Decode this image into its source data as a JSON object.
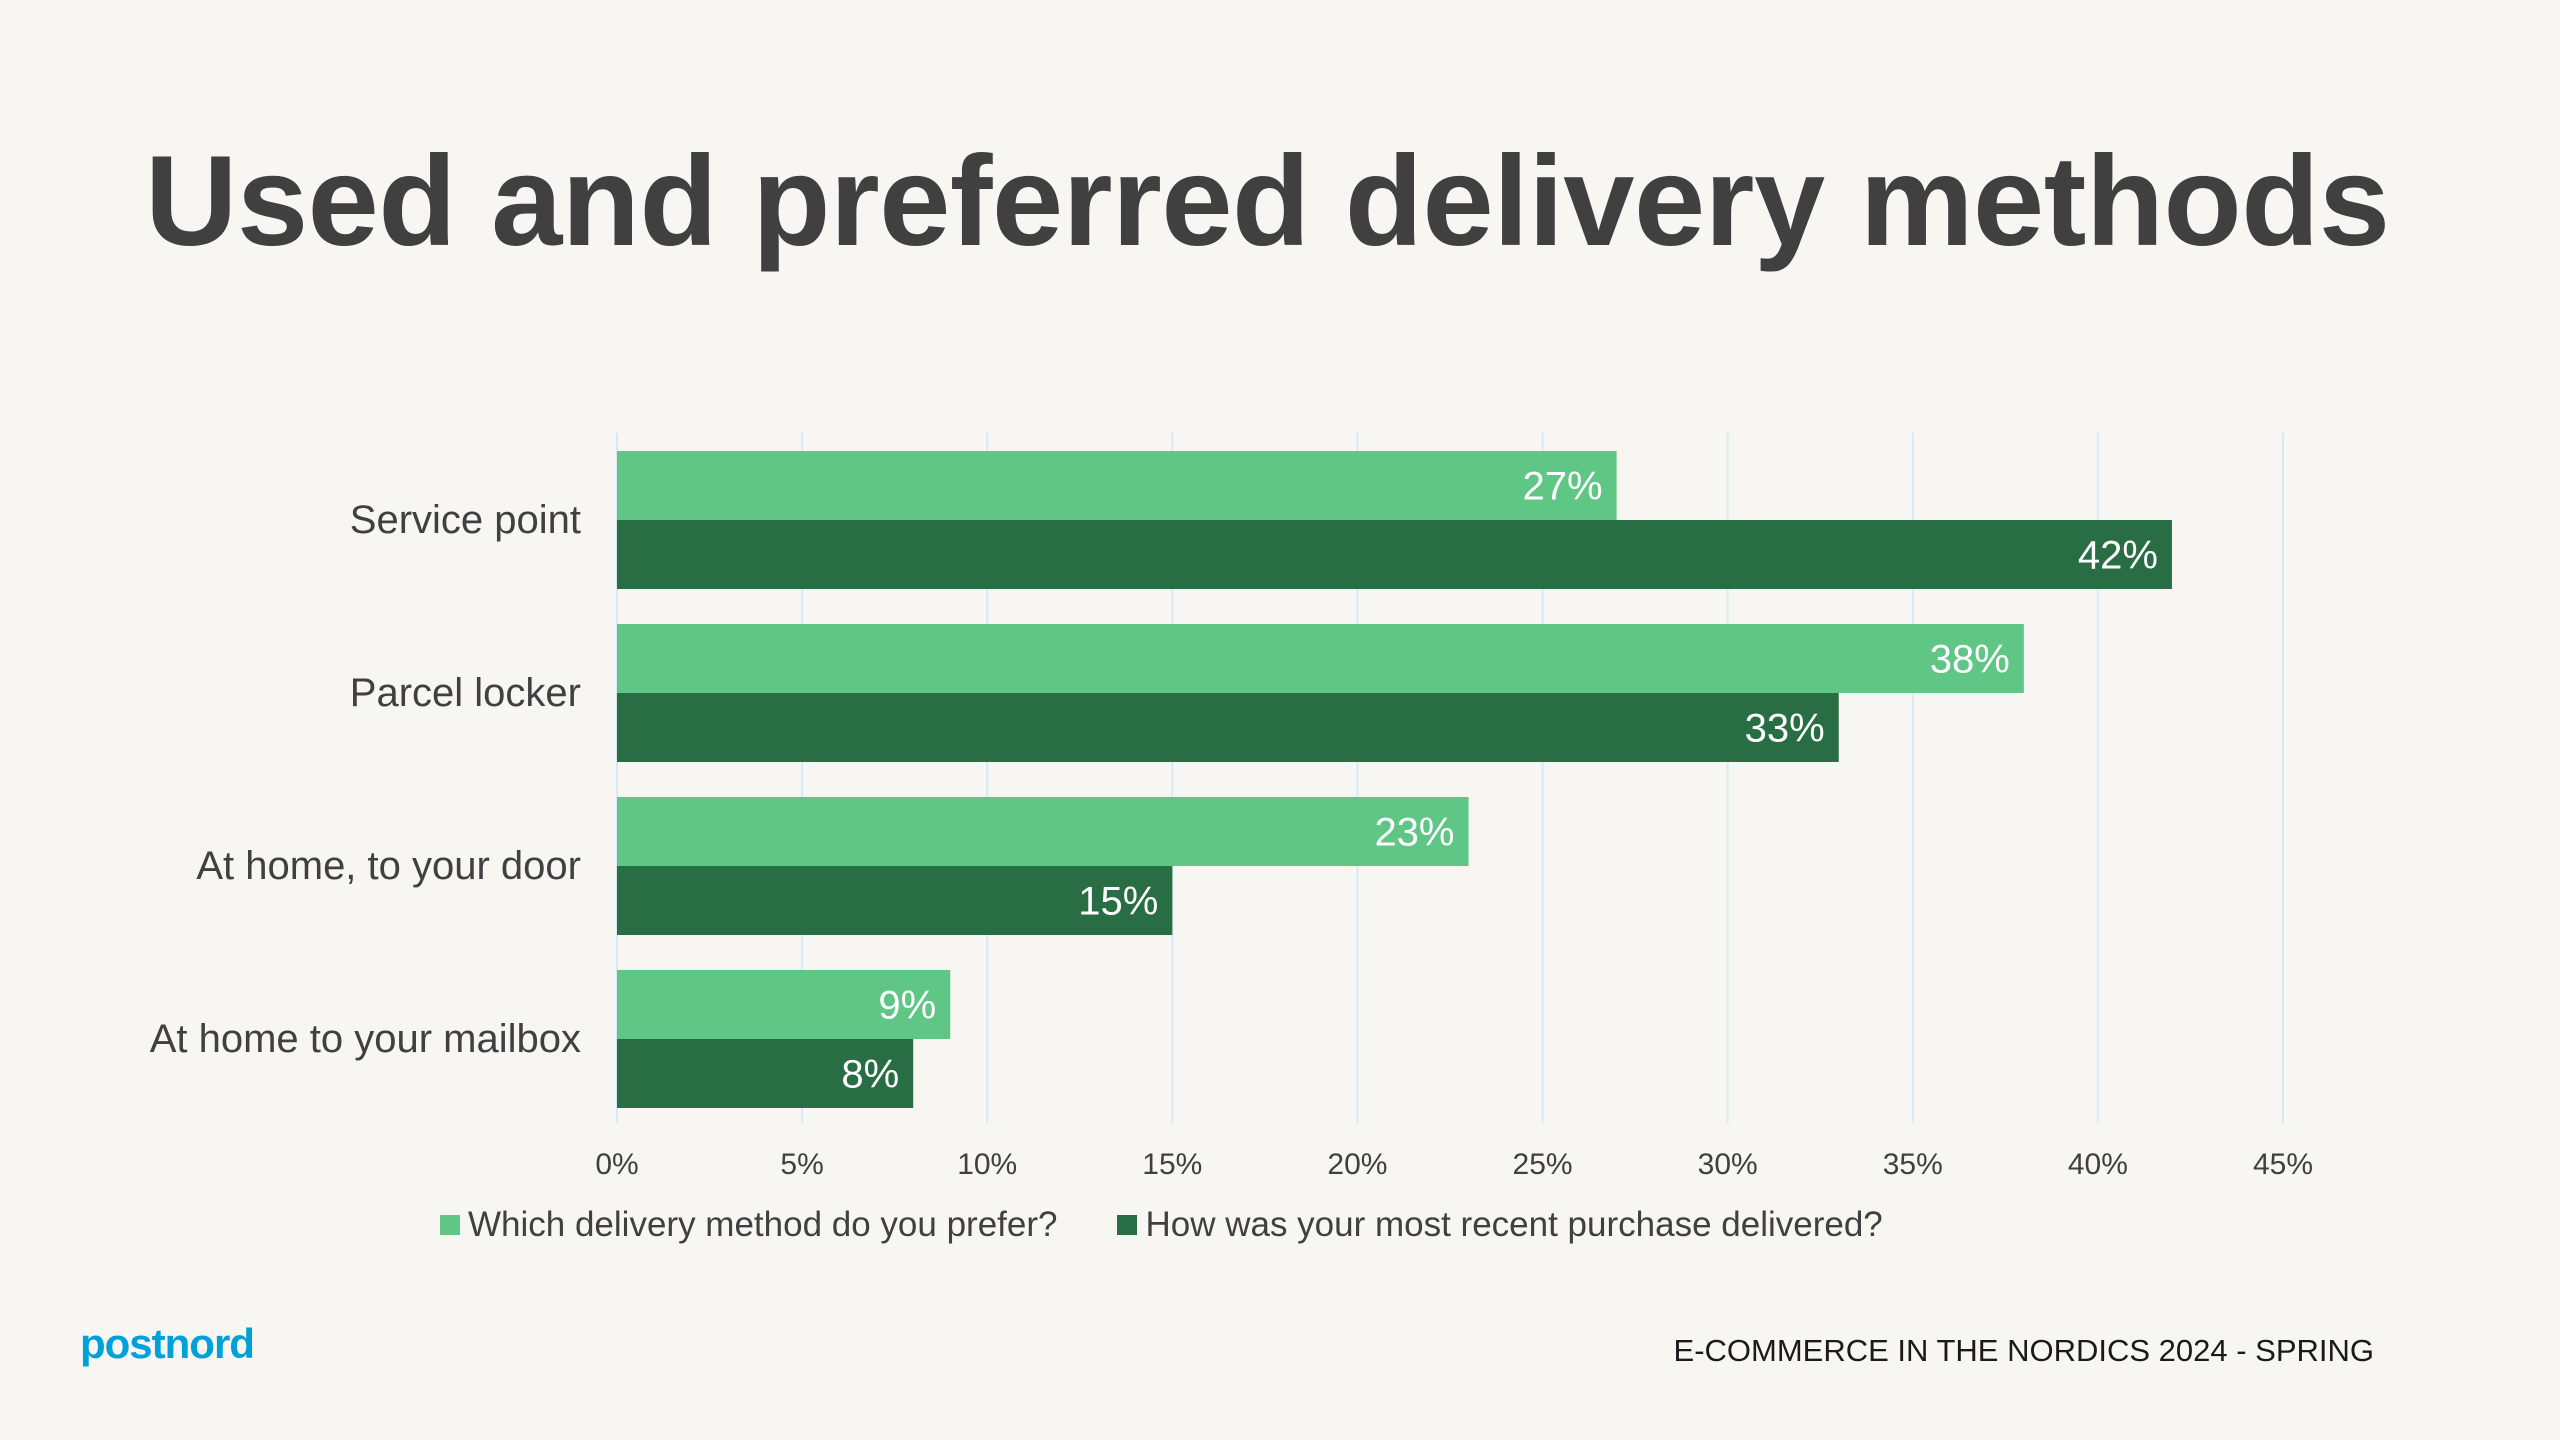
{
  "title": "Used and preferred delivery methods",
  "chart_data": {
    "type": "bar",
    "orientation": "horizontal",
    "title": "",
    "xlabel": "",
    "ylabel": "",
    "categories": [
      "Service point",
      "Parcel locker",
      "At home, to your door",
      "At home to your mailbox"
    ],
    "series": [
      {
        "name": "Which delivery method do you prefer?",
        "color": "#60c685",
        "values": [
          27,
          38,
          23,
          9
        ],
        "labels": [
          "27%",
          "38%",
          "23%",
          "9%"
        ]
      },
      {
        "name": "How was your most recent purchase delivered?",
        "color": "#286d43",
        "values": [
          42,
          33,
          15,
          8
        ],
        "labels": [
          "42%",
          "33%",
          "15%",
          "8%"
        ]
      }
    ],
    "xlim": [
      0,
      45
    ],
    "ticks": [
      "0%",
      "5%",
      "10%",
      "15%",
      "20%",
      "25%",
      "30%",
      "35%",
      "40%",
      "45%"
    ],
    "grid": true,
    "grid_color": "#d5eaf6",
    "legend_position": "bottom"
  },
  "logo": "postnord",
  "footer": "E-COMMERCE IN THE NORDICS 2024 - SPRING"
}
